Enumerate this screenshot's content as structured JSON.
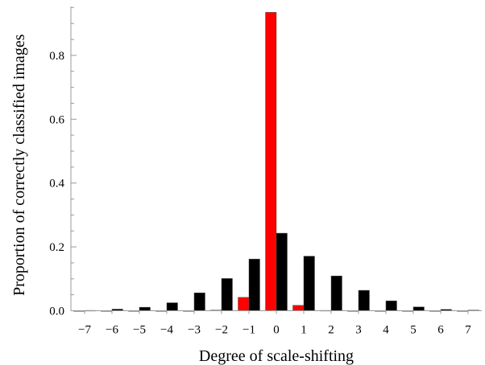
{
  "chart_data": {
    "type": "bar",
    "xlabel": "Degree of scale-shifting",
    "ylabel": "Proportion of correctly classified images",
    "categories": [
      -7,
      -6,
      -5,
      -4,
      -3,
      -2,
      -1,
      0,
      1,
      2,
      3,
      4,
      5,
      6,
      7
    ],
    "tick_labels": [
      "−7",
      "−6",
      "−5",
      "−4",
      "−3",
      "−2",
      "−1",
      "0",
      "1",
      "2",
      "3",
      "4",
      "5",
      "6",
      "7"
    ],
    "y_ticks": [
      0.0,
      0.2,
      0.4,
      0.6,
      0.8
    ],
    "y_tick_labels": [
      "0.0",
      "0.2",
      "0.4",
      "0.6",
      "0.8"
    ],
    "ylim": [
      0,
      0.95
    ],
    "grid": false,
    "legend": false,
    "series": [
      {
        "color": "#ff0000",
        "values": [
          0.0,
          0.0,
          0.0,
          0.0,
          0.0,
          0.002,
          0.042,
          0.935,
          0.017,
          0.001,
          0.0,
          0.0,
          0.0,
          0.0,
          0.0
        ]
      },
      {
        "color": "#000000",
        "values": [
          0.001,
          0.005,
          0.011,
          0.025,
          0.056,
          0.101,
          0.162,
          0.243,
          0.171,
          0.109,
          0.064,
          0.031,
          0.012,
          0.004,
          0.002
        ]
      }
    ]
  }
}
